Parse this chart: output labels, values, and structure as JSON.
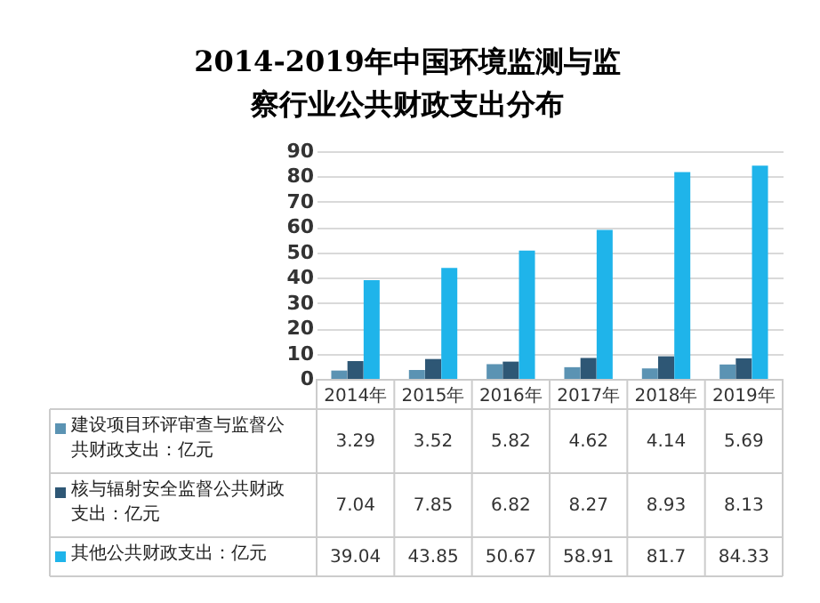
{
  "chart_data": {
    "type": "bar",
    "title": "2014-2019年中国环境监测与监察行业公共财政支出分布",
    "categories": [
      "2014年",
      "2015年",
      "2016年",
      "2017年",
      "2018年",
      "2019年"
    ],
    "series": [
      {
        "name": "建设项目环评审查与监督公共财政支出：亿元",
        "color": "#5b93b3",
        "values": [
          3.29,
          3.52,
          5.82,
          4.62,
          4.14,
          5.69
        ]
      },
      {
        "name": "核与辐射安全监督公共财政支出：亿元",
        "color": "#2e5775",
        "values": [
          7.04,
          7.85,
          6.82,
          8.27,
          8.93,
          8.13
        ]
      },
      {
        "name": "其他公共财政支出：亿元",
        "color": "#1fb4ea",
        "values": [
          39.04,
          43.85,
          50.67,
          58.91,
          81.7,
          84.33
        ]
      }
    ],
    "ylim": [
      0,
      90
    ],
    "yticks": [
      0,
      10,
      20,
      30,
      40,
      50,
      60,
      70,
      80,
      90
    ],
    "grid": "y",
    "legend": "bottom",
    "data_labels": true
  }
}
